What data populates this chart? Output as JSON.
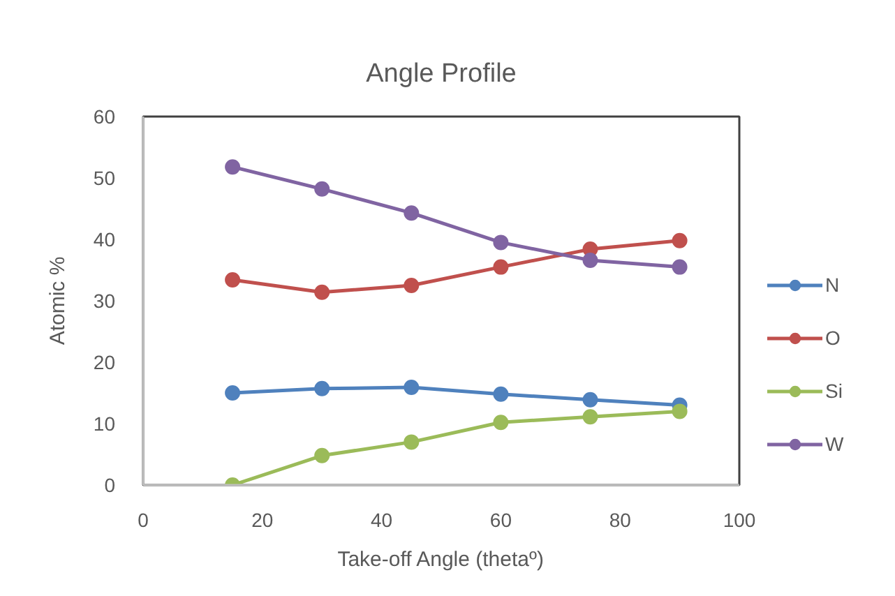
{
  "chart_data": {
    "type": "line",
    "title": "Angle Profile",
    "xlabel": "Take-off Angle (thetaº)",
    "ylabel": "Atomic %",
    "x": [
      15,
      30,
      45,
      60,
      75,
      90
    ],
    "series": [
      {
        "name": "N",
        "color": "#4f81bd",
        "values": [
          15.0,
          15.7,
          15.9,
          14.8,
          13.9,
          13.0
        ]
      },
      {
        "name": "O",
        "color": "#c0504d",
        "values": [
          33.4,
          31.4,
          32.5,
          35.5,
          38.4,
          39.8
        ]
      },
      {
        "name": "Si",
        "color": "#9bbb59",
        "values": [
          0.0,
          4.8,
          7.0,
          10.2,
          11.1,
          12.0
        ]
      },
      {
        "name": "W",
        "color": "#8064a2",
        "values": [
          51.8,
          48.2,
          44.3,
          39.5,
          36.6,
          35.5
        ]
      }
    ],
    "xlim": [
      0,
      100
    ],
    "xticks": [
      0,
      20,
      40,
      60,
      80,
      100
    ],
    "ylim": [
      0,
      60
    ],
    "yticks": [
      0,
      10,
      20,
      30,
      40,
      50,
      60
    ],
    "legend": "right",
    "marker": "circle",
    "line_style": "solid"
  }
}
